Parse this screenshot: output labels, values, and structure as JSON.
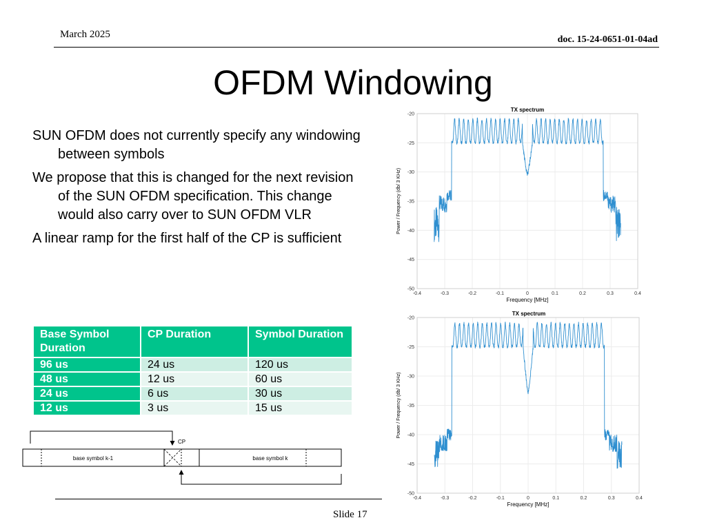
{
  "header": {
    "date": "March 2025",
    "doc_id": "doc. 15-24-0651-01-04ad"
  },
  "title": "OFDM Windowing",
  "bullets": [
    "SUN OFDM does not currently specify any windowing between symbols",
    "We propose that this is changed for the next revision of the SUN OFDM specification. This change would also carry over to SUN OFDM VLR",
    "A linear ramp for the first half of the CP is sufficient"
  ],
  "table": {
    "headers": [
      "Base Symbol Duration",
      "CP Duration",
      "Symbol Duration"
    ],
    "rows": [
      [
        "96 us",
        "24 us",
        "120 us"
      ],
      [
        "48 us",
        "12 us",
        "60 us"
      ],
      [
        "24 us",
        "6 us",
        "30 us"
      ],
      [
        "12 us",
        "3 us",
        "15 us"
      ]
    ]
  },
  "diagram": {
    "cp_label": "CP",
    "left_block": "base symbol k-1",
    "right_block": "base symbol k"
  },
  "footer": {
    "slide": "Slide 17"
  },
  "chart_data": [
    {
      "type": "line",
      "title": "TX spectrum",
      "xlabel": "Frequency [MHz]",
      "ylabel": "Power / Frequency (db/ 3 KHz)",
      "xlim": [
        -0.4,
        0.4
      ],
      "ylim": [
        -50,
        -20
      ],
      "xticks": [
        "-0.4",
        "-0.3",
        "-0.2",
        "-0.1",
        "0",
        "0.1",
        "0.2",
        "0.3",
        "0.4"
      ],
      "yticks": [
        "-20",
        "-25",
        "-30",
        "-35",
        "-40",
        "-45",
        "-50"
      ],
      "grid": true,
      "series": [
        {
          "band_edges_mhz": [
            -0.275,
            0.275
          ],
          "passband_ripple_db": [
            -25,
            -21
          ],
          "center_notch_db": -30.5,
          "edge_shoulder_db": -34,
          "out_of_band_db": [
            -42,
            -36
          ],
          "x": [
            -0.335,
            -0.32,
            -0.3,
            -0.28,
            -0.275,
            -0.26,
            -0.2,
            -0.1,
            -0.01,
            0,
            0.01,
            0.1,
            0.2,
            0.26,
            0.275,
            0.28,
            0.3,
            0.32,
            0.335
          ],
          "y": [
            -42,
            -38,
            -34,
            -34,
            -24,
            -23,
            -23,
            -23,
            -25,
            -30.5,
            -25,
            -23,
            -23,
            -23,
            -24,
            -34,
            -34,
            -38,
            -40
          ]
        }
      ]
    },
    {
      "type": "line",
      "title": "TX spectrum",
      "xlabel": "Frequency [MHz]",
      "ylabel": "Power / Frequency (db/ 3 KHz)",
      "xlim": [
        -0.4,
        0.4
      ],
      "ylim": [
        -50,
        -20
      ],
      "xticks": [
        "-0.4",
        "-0.3",
        "-0.2",
        "-0.1",
        "0",
        "0.1",
        "0.2",
        "0.3",
        "0.4"
      ],
      "yticks": [
        "-20",
        "-25",
        "-30",
        "-35",
        "-40",
        "-45",
        "-50"
      ],
      "grid": true,
      "series": [
        {
          "band_edges_mhz": [
            -0.275,
            0.275
          ],
          "passband_ripple_db": [
            -25,
            -21
          ],
          "center_notch_db": -33,
          "edge_shoulder_db": -40,
          "out_of_band_db": [
            -46,
            -41
          ],
          "x": [
            -0.335,
            -0.32,
            -0.3,
            -0.28,
            -0.275,
            -0.26,
            -0.2,
            -0.1,
            -0.01,
            0,
            0.01,
            0.1,
            0.2,
            0.26,
            0.275,
            0.28,
            0.3,
            0.32,
            0.335
          ],
          "y": [
            -45,
            -43,
            -40,
            -40,
            -24,
            -23,
            -23,
            -23,
            -26,
            -33,
            -26,
            -23,
            -23,
            -23,
            -24,
            -40,
            -40,
            -43,
            -45
          ]
        }
      ]
    }
  ]
}
